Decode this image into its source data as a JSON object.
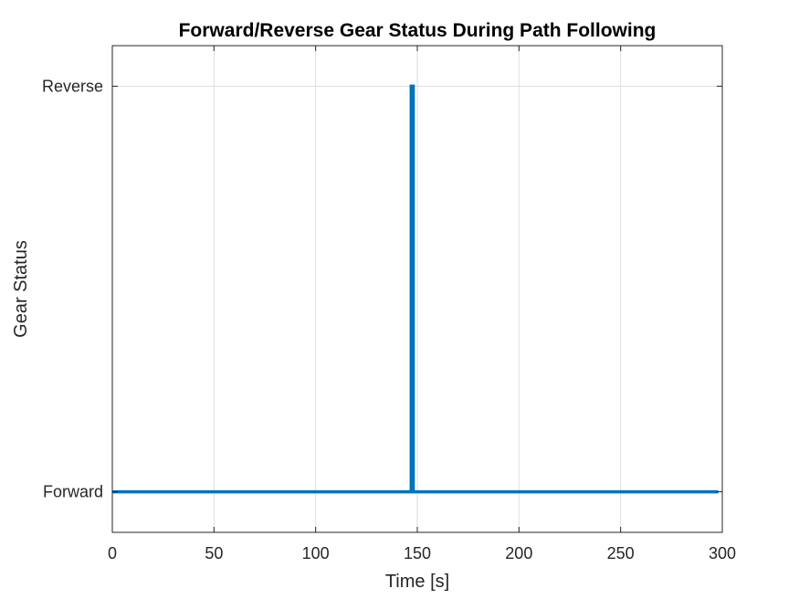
{
  "chart_data": {
    "type": "line",
    "title": "Forward/Reverse Gear Status During Path Following",
    "xlabel": "Time [s]",
    "ylabel": "Gear Status",
    "xlim": [
      0,
      300
    ],
    "ylim": [
      -0.1,
      1.1
    ],
    "xticks": [
      0,
      50,
      100,
      150,
      200,
      250,
      300
    ],
    "yticks": [
      {
        "value": 0,
        "label": "Forward"
      },
      {
        "value": 1,
        "label": "Reverse"
      }
    ],
    "grid": true,
    "series": [
      {
        "color": "#0072BD",
        "x": [
          0,
          147,
          147,
          148,
          148,
          147.5,
          147.5,
          298
        ],
        "y": [
          0,
          0,
          1,
          1,
          0,
          0,
          0,
          0
        ]
      }
    ]
  }
}
